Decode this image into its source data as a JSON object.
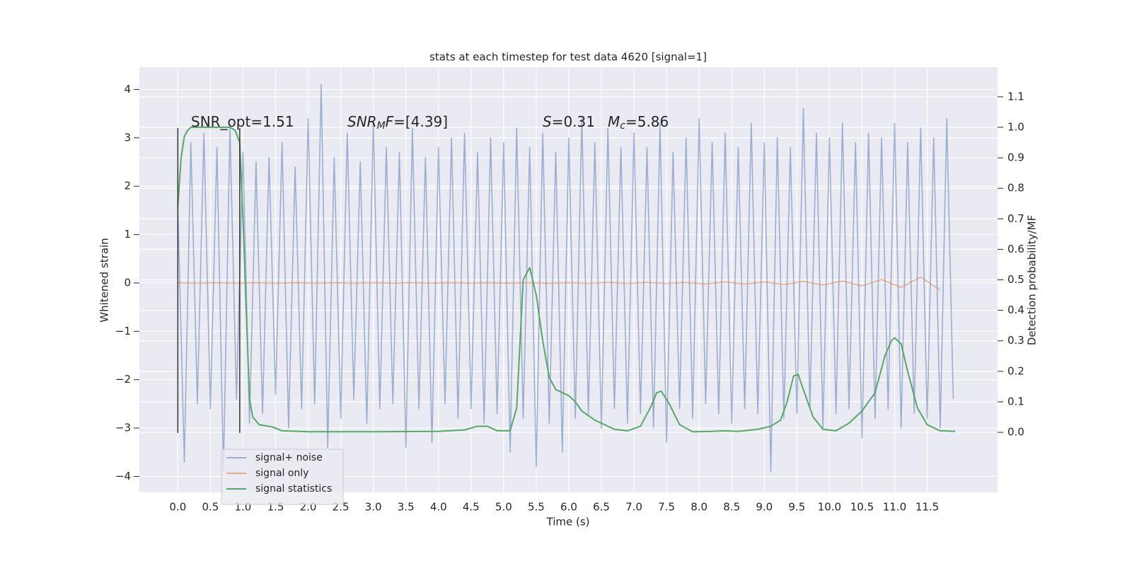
{
  "chart_data": {
    "type": "line",
    "title": "stats at each timestep for test data 4620 [signal=1]",
    "xlabel": "Time (s)",
    "ylabel": "Whitened strain",
    "y2label": "Detection probability/MF",
    "xlim": [
      -0.59,
      12.58
    ],
    "ylim": [
      -4.33,
      4.46
    ],
    "y2lim": [
      -0.197,
      1.197
    ],
    "xticks": [
      {
        "value": 0,
        "label": "0.0"
      },
      0.5,
      {
        "value": 1,
        "label": "1.0"
      },
      1.5,
      {
        "value": 2,
        "label": "2.0"
      },
      2.5,
      {
        "value": 3,
        "label": "3.0"
      },
      3.5,
      {
        "value": 4,
        "label": "4.0"
      },
      4.5,
      {
        "value": 5,
        "label": "5.0"
      },
      5.5,
      {
        "value": 6,
        "label": "6.0"
      },
      6.5,
      {
        "value": 7,
        "label": "7.0"
      },
      7.5,
      {
        "value": 8,
        "label": "8.0"
      },
      8.5,
      {
        "value": 9,
        "label": "9.0"
      },
      9.5,
      {
        "value": 10,
        "label": "10.0"
      },
      10.5,
      {
        "value": 11,
        "label": "11.0"
      },
      11.5
    ],
    "yticks": [
      {
        "value": -4,
        "label": "−4"
      },
      {
        "value": -3,
        "label": "−3"
      },
      {
        "value": -2,
        "label": "−2"
      },
      {
        "value": -1,
        "label": "−1"
      },
      0,
      1,
      2,
      3,
      4
    ],
    "y2ticks": [
      {
        "value": 0,
        "label": "0.0"
      },
      0.1,
      0.2,
      0.3,
      0.4,
      0.5,
      0.6,
      0.7,
      0.8,
      0.9,
      {
        "value": 1,
        "label": "1.0"
      },
      1.1
    ],
    "grid": true,
    "legend": "lower left",
    "series": [
      {
        "name": "signal+ noise",
        "color": "#4c72b0",
        "opacity": 0.5,
        "x": [
          0,
          0.1,
          0.2,
          0.3,
          0.4,
          0.5,
          0.6,
          0.7,
          0.8,
          0.9,
          1,
          1.1,
          1.2,
          1.3,
          1.4,
          1.5,
          1.6,
          1.7,
          1.8,
          1.9,
          2,
          2.1,
          2.2,
          2.3,
          2.4,
          2.5,
          2.6,
          2.7,
          2.8,
          2.9,
          3,
          3.1,
          3.2,
          3.3,
          3.4,
          3.5,
          3.6,
          3.7,
          3.8,
          3.9,
          4,
          4.1,
          4.2,
          4.3,
          4.4,
          4.5,
          4.6,
          4.7,
          4.8,
          4.9,
          5,
          5.1,
          5.2,
          5.3,
          5.4,
          5.5,
          5.6,
          5.7,
          5.8,
          5.9,
          6,
          6.1,
          6.2,
          6.3,
          6.4,
          6.5,
          6.6,
          6.7,
          6.8,
          6.9,
          7,
          7.1,
          7.2,
          7.3,
          7.4,
          7.5,
          7.6,
          7.7,
          7.8,
          7.9,
          8,
          8.1,
          8.2,
          8.3,
          8.4,
          8.5,
          8.6,
          8.7,
          8.8,
          8.9,
          9,
          9.1,
          9.2,
          9.3,
          9.4,
          9.5,
          9.6,
          9.7,
          9.8,
          9.9,
          10,
          10.1,
          10.2,
          10.3,
          10.4,
          10.5,
          10.6,
          10.7,
          10.8,
          10.9,
          11,
          11.1,
          11.2,
          11.3,
          11.4,
          11.5,
          11.6,
          11.7,
          11.8,
          11.9
        ],
        "values": [
          1.6,
          -3.7,
          2.9,
          -2.5,
          3.1,
          -2.6,
          2.8,
          -3.9,
          3.2,
          -2.4,
          2.7,
          -2.9,
          2.5,
          -2.7,
          2.6,
          -2.3,
          2.9,
          -3.0,
          2.4,
          -2.6,
          3.4,
          -2.5,
          4.1,
          -3.4,
          2.6,
          -2.8,
          3.1,
          -2.4,
          2.5,
          -2.9,
          3.3,
          -2.6,
          2.8,
          -2.5,
          2.7,
          -3.4,
          3.2,
          -2.6,
          2.6,
          -3.3,
          2.8,
          -2.5,
          3.0,
          -2.8,
          3.1,
          -2.6,
          2.7,
          -2.9,
          3.0,
          -2.7,
          2.9,
          -3.5,
          3.2,
          -2.8,
          2.8,
          -3.8,
          3.1,
          -2.9,
          2.7,
          -3.5,
          3.0,
          -2.8,
          3.4,
          -2.7,
          2.9,
          -3.0,
          3.2,
          -2.6,
          2.8,
          -2.9,
          3.1,
          -2.7,
          2.8,
          -3.0,
          3.3,
          -3.3,
          2.7,
          -2.6,
          3.0,
          -2.8,
          3.4,
          -2.5,
          2.9,
          -2.7,
          3.1,
          -2.9,
          2.8,
          -2.6,
          3.3,
          -2.7,
          2.9,
          -3.9,
          3.0,
          -2.8,
          2.8,
          -2.7,
          3.6,
          -2.6,
          3.1,
          -3.0,
          3.0,
          -2.7,
          3.3,
          -2.6,
          2.9,
          -3.2,
          3.1,
          -2.8,
          3.0,
          -2.6,
          3.3,
          -3.0,
          2.9,
          -2.7,
          3.2,
          -2.8,
          3.0,
          -3.0,
          3.4,
          -2.4
        ]
      },
      {
        "name": "signal only",
        "color": "#dd8452",
        "opacity": 0.6,
        "x": [
          0,
          0.3,
          0.6,
          0.9,
          1.2,
          1.5,
          1.8,
          2.1,
          2.4,
          2.7,
          3,
          3.3,
          3.6,
          3.9,
          4.2,
          4.5,
          4.8,
          5.1,
          5.4,
          5.7,
          6,
          6.3,
          6.6,
          6.9,
          7.2,
          7.5,
          7.8,
          8.1,
          8.4,
          8.7,
          9,
          9.3,
          9.6,
          9.9,
          10.2,
          10.5,
          10.8,
          11.1,
          11.4,
          11.7
        ],
        "values": [
          0.005,
          -0.005,
          0.005,
          -0.005,
          0.005,
          -0.005,
          0.005,
          -0.005,
          0.005,
          -0.005,
          0.005,
          -0.005,
          0.005,
          -0.005,
          0.005,
          -0.005,
          0.005,
          -0.005,
          0.005,
          -0.005,
          0.005,
          -0.01,
          0.01,
          -0.01,
          0.01,
          -0.01,
          0.01,
          -0.02,
          0.02,
          -0.02,
          0.02,
          -0.03,
          0.03,
          -0.04,
          0.04,
          -0.06,
          0.07,
          -0.09,
          0.12,
          -0.15
        ]
      },
      {
        "name": "signal statistics",
        "color": "#55a868",
        "opacity": 1,
        "axis": "y2",
        "x": [
          0,
          0.05,
          0.1,
          0.15,
          0.2,
          0.4,
          0.6,
          0.8,
          0.88,
          0.95,
          1,
          1.05,
          1.1,
          1.15,
          1.25,
          1.45,
          1.6,
          2,
          3,
          4,
          4.4,
          4.6,
          4.75,
          4.9,
          5.1,
          5.2,
          5.3,
          5.4,
          5.5,
          5.6,
          5.7,
          5.8,
          6,
          6.1,
          6.2,
          6.4,
          6.7,
          6.9,
          7.1,
          7.25,
          7.35,
          7.42,
          7.55,
          7.7,
          7.9,
          8.2,
          8.4,
          8.6,
          8.9,
          9.1,
          9.25,
          9.35,
          9.45,
          9.52,
          9.6,
          9.75,
          9.9,
          10.1,
          10.3,
          10.5,
          10.7,
          10.85,
          10.95,
          11,
          11.1,
          11.2,
          11.35,
          11.5,
          11.7,
          11.93
        ],
        "values": [
          0.74,
          0.9,
          0.97,
          0.99,
          1.0,
          1.0,
          1.0,
          1.0,
          0.99,
          0.95,
          0.7,
          0.4,
          0.11,
          0.05,
          0.025,
          0.018,
          0.005,
          0.002,
          0.002,
          0.003,
          0.008,
          0.02,
          0.02,
          0.005,
          0.005,
          0.08,
          0.5,
          0.54,
          0.45,
          0.3,
          0.18,
          0.14,
          0.12,
          0.1,
          0.07,
          0.04,
          0.01,
          0.005,
          0.02,
          0.08,
          0.13,
          0.135,
          0.09,
          0.025,
          0.002,
          0.003,
          0.005,
          0.003,
          0.01,
          0.02,
          0.04,
          0.1,
          0.185,
          0.19,
          0.14,
          0.05,
          0.01,
          0.005,
          0.03,
          0.07,
          0.13,
          0.25,
          0.3,
          0.31,
          0.29,
          0.2,
          0.08,
          0.025,
          0.005,
          0.003
        ]
      }
    ],
    "markers": {
      "x": [
        0,
        0.95
      ],
      "ymin": -3.1,
      "ymax": 3.2,
      "color": "#333333"
    },
    "annotations": [
      {
        "parts": [
          {
            "text": "SNR_opt=1.51"
          }
        ]
      },
      {
        "parts": [
          {
            "text": "SNR",
            "style": "italic"
          },
          {
            "text": "M",
            "style": "italic-sub"
          },
          {
            "text": "F",
            "style": "italic"
          },
          {
            "text": "=[4.39]"
          }
        ]
      },
      {
        "parts": [
          {
            "text": "S",
            "style": "italic"
          },
          {
            "text": "=0.31"
          }
        ]
      },
      {
        "parts": [
          {
            "text": "M",
            "style": "italic"
          },
          {
            "text": "c",
            "style": "italic-sub"
          },
          {
            "text": "=5.86"
          }
        ]
      }
    ]
  }
}
